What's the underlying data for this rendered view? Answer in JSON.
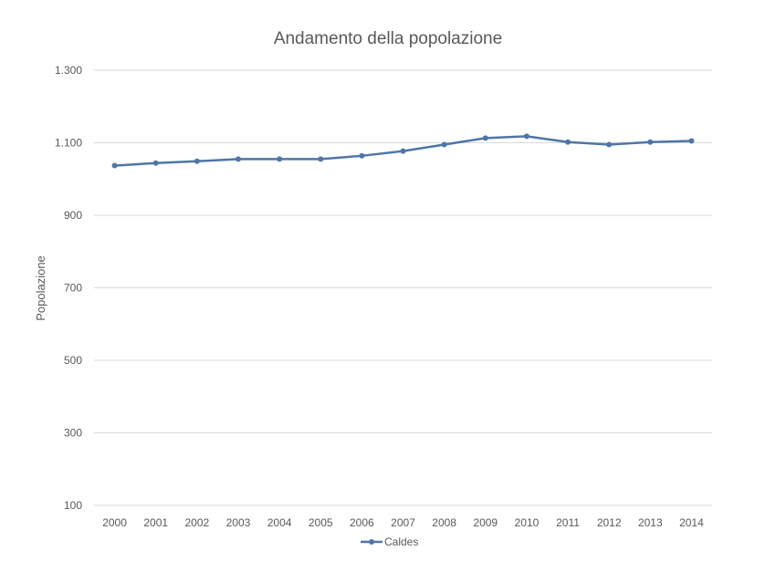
{
  "chart_data": {
    "type": "line",
    "title": "Andamento della popolazione",
    "xlabel": "",
    "ylabel": "Popolazione",
    "categories": [
      "2000",
      "2001",
      "2002",
      "2003",
      "2004",
      "2005",
      "2006",
      "2007",
      "2008",
      "2009",
      "2010",
      "2011",
      "2012",
      "2013",
      "2014"
    ],
    "series": [
      {
        "name": "Caldes",
        "color": "#4f76a6",
        "values": [
          1037,
          1044,
          1049,
          1055,
          1055,
          1055,
          1064,
          1077,
          1095,
          1113,
          1118,
          1102,
          1095,
          1102,
          1105
        ]
      }
    ],
    "ylim": [
      100,
      1300
    ],
    "yticks": [
      100,
      300,
      500,
      700,
      900,
      1100,
      1300
    ],
    "ytick_labels": [
      "100",
      "300",
      "500",
      "700",
      "900",
      "1.100",
      "1.300"
    ],
    "grid": true,
    "legend_position": "bottom"
  }
}
